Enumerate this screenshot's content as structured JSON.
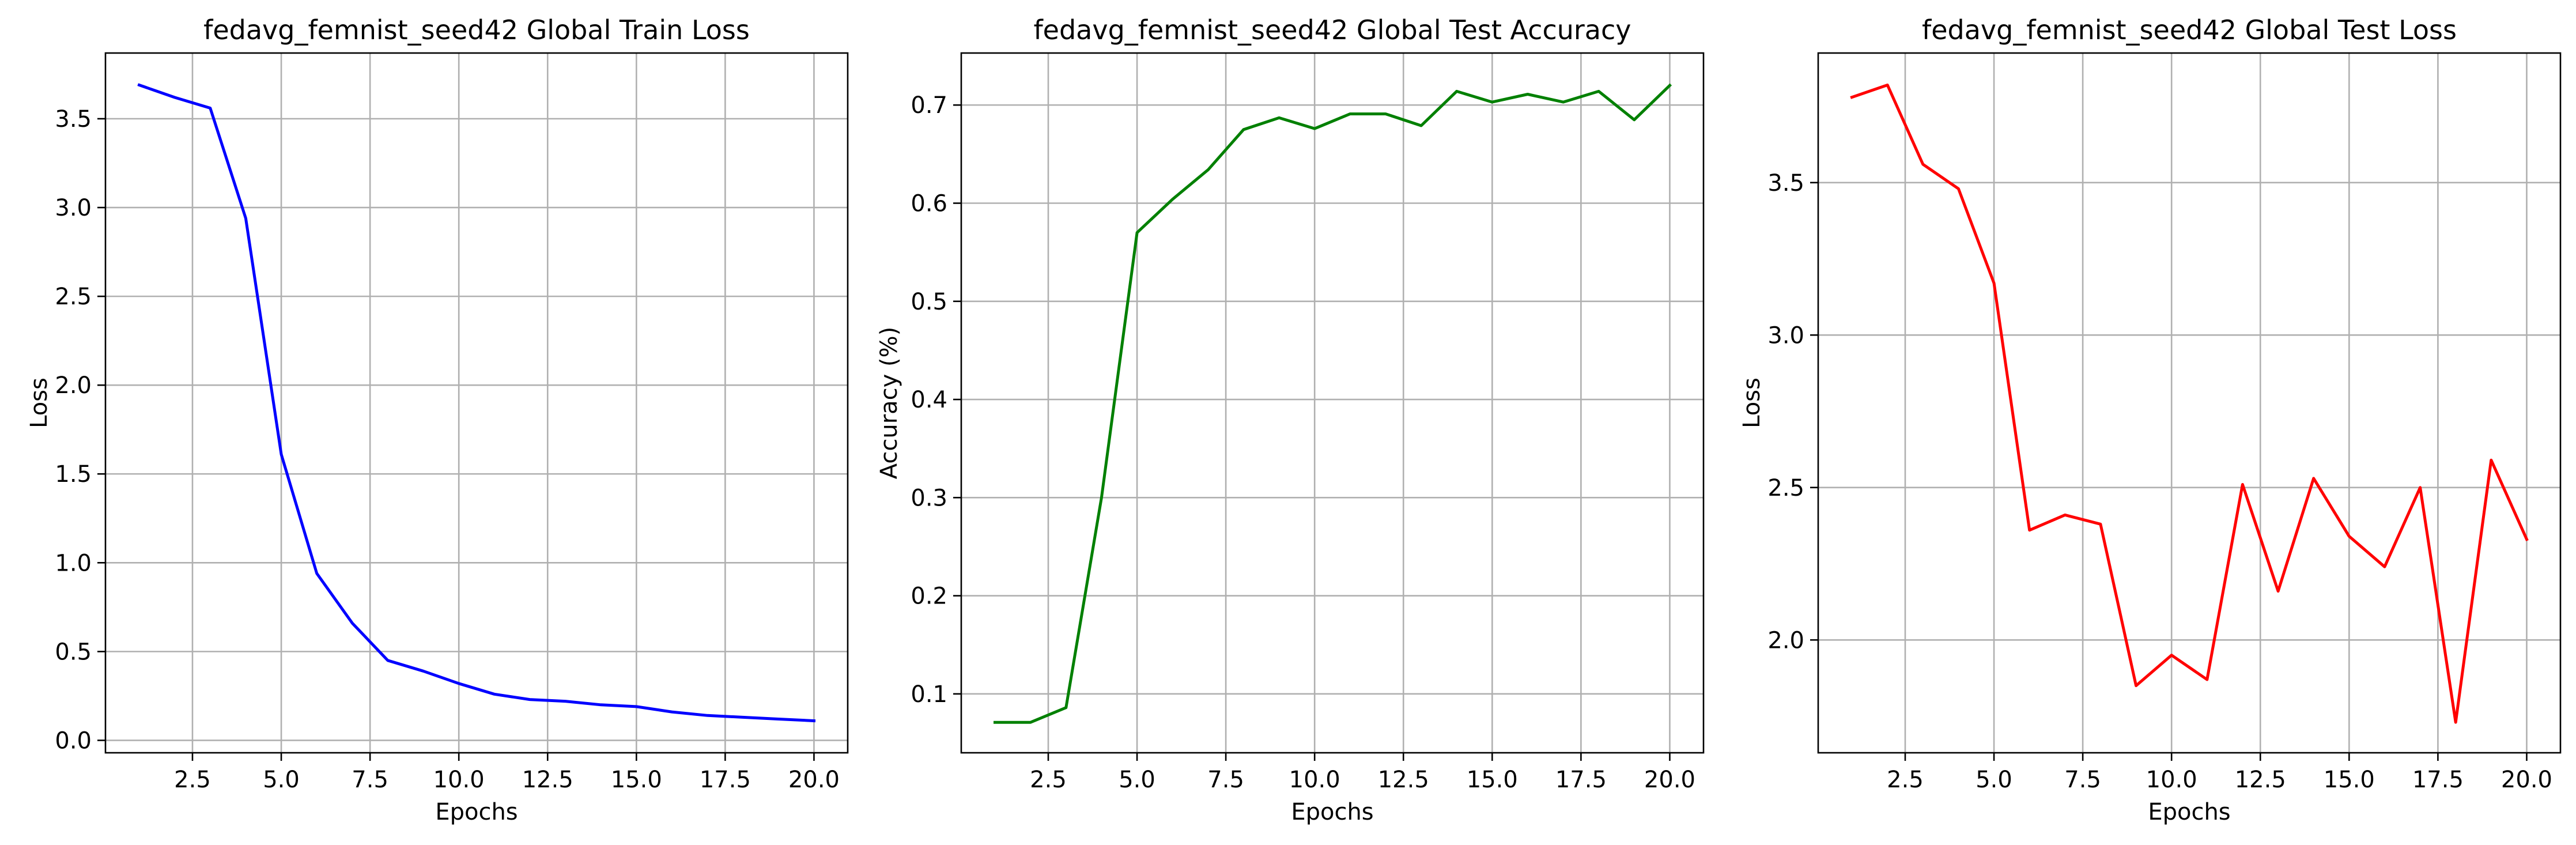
{
  "chart_data": [
    {
      "type": "line",
      "title": "fedavg_femnist_seed42 Global Train Loss",
      "xlabel": "Epochs",
      "ylabel": "Loss",
      "xlim": [
        0.05,
        20.95
      ],
      "ylim": [
        -0.07,
        3.87
      ],
      "grid": true,
      "xticks": [
        2.5,
        5.0,
        7.5,
        10.0,
        12.5,
        15.0,
        17.5,
        20.0
      ],
      "xtick_labels": [
        "2.5",
        "5.0",
        "7.5",
        "10.0",
        "12.5",
        "15.0",
        "17.5",
        "20.0"
      ],
      "yticks": [
        0.0,
        0.5,
        1.0,
        1.5,
        2.0,
        2.5,
        3.0,
        3.5
      ],
      "ytick_labels": [
        "0.0",
        "0.5",
        "1.0",
        "1.5",
        "2.0",
        "2.5",
        "3.0",
        "3.5"
      ],
      "series": [
        {
          "color": "#0000ff",
          "x": [
            1,
            2,
            3,
            4,
            5,
            6,
            7,
            8,
            9,
            10,
            11,
            12,
            13,
            14,
            15,
            16,
            17,
            18,
            19,
            20
          ],
          "y": [
            3.69,
            3.62,
            3.56,
            2.94,
            1.61,
            0.94,
            0.66,
            0.45,
            0.39,
            0.32,
            0.26,
            0.23,
            0.22,
            0.2,
            0.19,
            0.16,
            0.14,
            0.13,
            0.12,
            0.11
          ]
        }
      ]
    },
    {
      "type": "line",
      "title": "fedavg_femnist_seed42 Global Test Accuracy",
      "xlabel": "Epochs",
      "ylabel": "Accuracy (%)",
      "xlim": [
        0.05,
        20.95
      ],
      "ylim": [
        0.04,
        0.753
      ],
      "grid": true,
      "xticks": [
        2.5,
        5.0,
        7.5,
        10.0,
        12.5,
        15.0,
        17.5,
        20.0
      ],
      "xtick_labels": [
        "2.5",
        "5.0",
        "7.5",
        "10.0",
        "12.5",
        "15.0",
        "17.5",
        "20.0"
      ],
      "yticks": [
        0.1,
        0.2,
        0.3,
        0.4,
        0.5,
        0.6,
        0.7
      ],
      "ytick_labels": [
        "0.1",
        "0.2",
        "0.3",
        "0.4",
        "0.5",
        "0.6",
        "0.7"
      ],
      "series": [
        {
          "color": "#008000",
          "x": [
            1,
            2,
            3,
            4,
            5,
            6,
            7,
            8,
            9,
            10,
            11,
            12,
            13,
            14,
            15,
            16,
            17,
            18,
            19,
            20
          ],
          "y": [
            0.071,
            0.071,
            0.086,
            0.3,
            0.57,
            0.604,
            0.634,
            0.675,
            0.687,
            0.676,
            0.691,
            0.691,
            0.679,
            0.714,
            0.703,
            0.711,
            0.703,
            0.714,
            0.685,
            0.72
          ]
        }
      ]
    },
    {
      "type": "line",
      "title": "fedavg_femnist_seed42 Global Test Loss",
      "xlabel": "Epochs",
      "ylabel": "Loss",
      "xlim": [
        0.05,
        20.95
      ],
      "ylim": [
        1.63,
        3.925
      ],
      "grid": true,
      "xticks": [
        2.5,
        5.0,
        7.5,
        10.0,
        12.5,
        15.0,
        17.5,
        20.0
      ],
      "xtick_labels": [
        "2.5",
        "5.0",
        "7.5",
        "10.0",
        "12.5",
        "15.0",
        "17.5",
        "20.0"
      ],
      "yticks": [
        2.0,
        2.5,
        3.0,
        3.5
      ],
      "ytick_labels": [
        "2.0",
        "2.5",
        "3.0",
        "3.5"
      ],
      "series": [
        {
          "color": "#ff0000",
          "x": [
            1,
            2,
            3,
            4,
            5,
            6,
            7,
            8,
            9,
            10,
            11,
            12,
            13,
            14,
            15,
            16,
            17,
            18,
            19,
            20
          ],
          "y": [
            3.78,
            3.82,
            3.56,
            3.48,
            3.17,
            2.36,
            2.41,
            2.38,
            1.85,
            1.95,
            1.87,
            2.51,
            2.16,
            2.53,
            2.34,
            2.24,
            2.5,
            1.73,
            2.59,
            2.33
          ]
        }
      ]
    }
  ]
}
